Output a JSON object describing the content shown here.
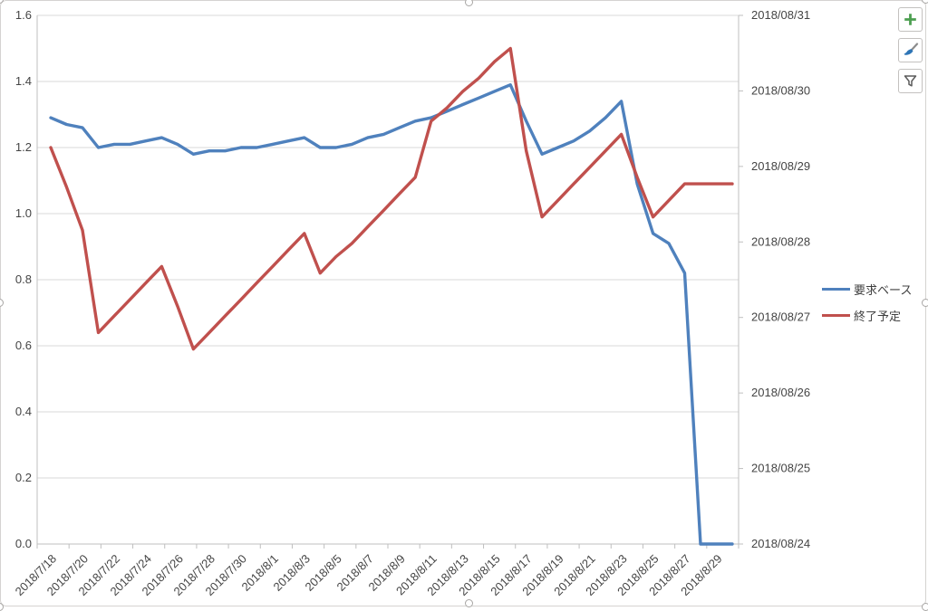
{
  "chart_data": {
    "type": "line",
    "title": "",
    "grid": "horizontal",
    "legend_position": "right",
    "categories": [
      "2018/7/18",
      "2018/7/19",
      "2018/7/20",
      "2018/7/21",
      "2018/7/22",
      "2018/7/23",
      "2018/7/24",
      "2018/7/25",
      "2018/7/26",
      "2018/7/27",
      "2018/7/28",
      "2018/7/29",
      "2018/7/30",
      "2018/7/31",
      "2018/8/1",
      "2018/8/2",
      "2018/8/3",
      "2018/8/4",
      "2018/8/5",
      "2018/8/6",
      "2018/8/7",
      "2018/8/8",
      "2018/8/9",
      "2018/8/10",
      "2018/8/11",
      "2018/8/12",
      "2018/8/13",
      "2018/8/14",
      "2018/8/15",
      "2018/8/16",
      "2018/8/17",
      "2018/8/18",
      "2018/8/19",
      "2018/8/20",
      "2018/8/21",
      "2018/8/22",
      "2018/8/23",
      "2018/8/24",
      "2018/8/25",
      "2018/8/26",
      "2018/8/27",
      "2018/8/28",
      "2018/8/29",
      "2018/8/30"
    ],
    "series": [
      {
        "name": "要求ベース",
        "color": "#4F81BD",
        "axis": "left",
        "values": [
          1.29,
          1.27,
          1.26,
          1.2,
          1.21,
          1.21,
          1.22,
          1.23,
          1.21,
          1.18,
          1.19,
          1.19,
          1.2,
          1.2,
          1.21,
          1.22,
          1.23,
          1.2,
          1.2,
          1.21,
          1.23,
          1.24,
          1.26,
          1.28,
          1.29,
          1.31,
          1.33,
          1.35,
          1.37,
          1.39,
          1.28,
          1.18,
          1.2,
          1.22,
          1.25,
          1.29,
          1.34,
          1.09,
          0.94,
          0.91,
          0.82,
          0.0,
          0.0,
          0.0
        ]
      },
      {
        "name": "終了予定",
        "color": "#C0504D",
        "axis": "right-date",
        "values": [
          1.2,
          1.08,
          0.95,
          0.64,
          0.69,
          0.74,
          0.79,
          0.84,
          0.72,
          0.59,
          0.64,
          0.69,
          0.74,
          0.79,
          0.84,
          0.89,
          0.94,
          0.82,
          0.87,
          0.91,
          0.96,
          1.01,
          1.06,
          1.11,
          1.28,
          1.32,
          1.37,
          1.41,
          1.46,
          1.5,
          1.19,
          0.99,
          1.04,
          1.09,
          1.14,
          1.19,
          1.24,
          1.11,
          0.99,
          1.04,
          1.09,
          1.09,
          1.09,
          1.09
        ]
      }
    ],
    "left_axis": {
      "min": 0,
      "max": 1.6,
      "step": 0.2,
      "labels": [
        "1.6",
        "1.4",
        "1.2",
        "1.0",
        "0.8",
        "0.6",
        "0.4",
        "0.2",
        "0.0"
      ]
    },
    "right_axis": {
      "min_label": "2018/08/24",
      "max_label": "2018/08/31",
      "labels": [
        "2018/08/31",
        "2018/08/30",
        "2018/08/29",
        "2018/08/28",
        "2018/08/27",
        "2018/08/26",
        "2018/08/25",
        "2018/08/24"
      ]
    },
    "x_axis": {
      "tick_labels": [
        "2018/7/18",
        "2018/7/20",
        "2018/7/22",
        "2018/7/24",
        "2018/7/26",
        "2018/7/28",
        "2018/7/30",
        "2018/8/1",
        "2018/8/3",
        "2018/8/5",
        "2018/8/7",
        "2018/8/9",
        "2018/8/11",
        "2018/8/13",
        "2018/8/15",
        "2018/8/17",
        "2018/8/19",
        "2018/8/21",
        "2018/8/23",
        "2018/8/25",
        "2018/8/27",
        "2018/8/29"
      ]
    },
    "colors": {
      "gridline": "#D9D9D9",
      "axis_line": "#BFBFBF",
      "tick_text": "#444444"
    }
  },
  "legend": {
    "items": [
      "要求ベース",
      "終了予定"
    ]
  },
  "toolbar": {
    "buttons": [
      {
        "label": "chart elements",
        "icon": "plus",
        "color": "#4C9F50"
      },
      {
        "label": "chart styles",
        "icon": "paintbrush",
        "color": "#2E75B6"
      },
      {
        "label": "chart filters",
        "icon": "funnel",
        "color": "#666666"
      }
    ]
  }
}
